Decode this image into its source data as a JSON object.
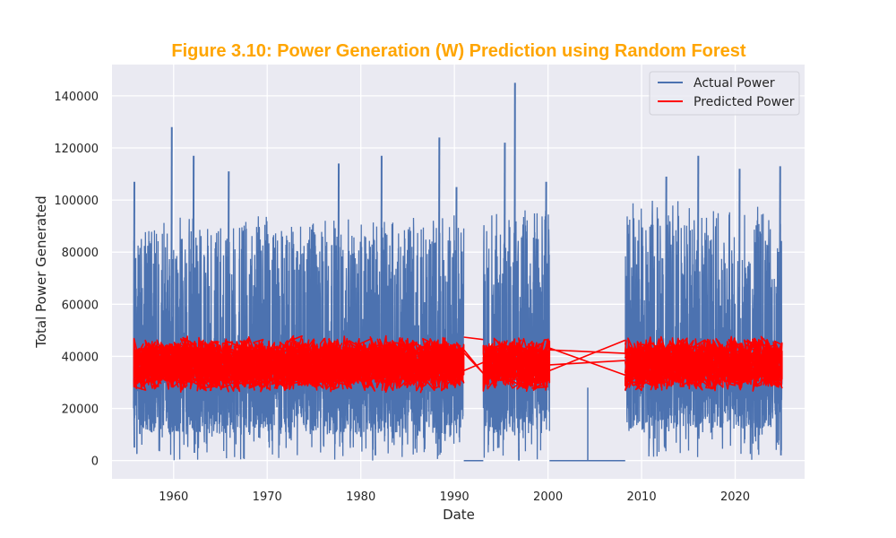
{
  "chart_data": {
    "type": "line",
    "title": "Figure 3.10: Power Generation (W) Prediction using Random Forest",
    "xlabel": "Date",
    "ylabel": "Total Power Generated",
    "xlim": [
      "1953-06",
      "2027-06"
    ],
    "ylim": [
      -7000,
      152000
    ],
    "x_ticks": [
      "1960",
      "1970",
      "1980",
      "1990",
      "2000",
      "2010",
      "2020"
    ],
    "y_ticks": [
      0,
      20000,
      40000,
      60000,
      80000,
      100000,
      120000,
      140000
    ],
    "grid": true,
    "legend_position": "top-right",
    "colors": {
      "title": "#FFA500",
      "background": "#EAEAF2",
      "grid": "#FFFFFF",
      "actual": "#4C72B0",
      "predicted": "#FF0000"
    },
    "series": [
      {
        "name": "Actual Power",
        "color": "#4C72B0",
        "segments": [
          {
            "start": "1955-10",
            "end": "1991-01",
            "baseline_min": 10000,
            "typical_max": 90000
          },
          {
            "start": "1993-02",
            "end": "2000-03",
            "baseline_min": 10000,
            "typical_max": 95000
          },
          {
            "start": "2008-04",
            "end": "2025-01",
            "baseline_min": 12000,
            "typical_max": 95000
          }
        ],
        "zero_segments": [
          [
            "1991-01",
            "1993-02"
          ],
          [
            "2000-03",
            "2008-04"
          ]
        ],
        "peaks": [
          {
            "x": "1955-10",
            "y": 107000
          },
          {
            "x": "1959-10",
            "y": 128000
          },
          {
            "x": "1962-02",
            "y": 117000
          },
          {
            "x": "1965-11",
            "y": 111000
          },
          {
            "x": "1977-08",
            "y": 114000
          },
          {
            "x": "1982-03",
            "y": 117000
          },
          {
            "x": "1988-05",
            "y": 124000
          },
          {
            "x": "1990-03",
            "y": 105000
          },
          {
            "x": "1995-05",
            "y": 122000
          },
          {
            "x": "1996-06",
            "y": 145000
          },
          {
            "x": "1999-10",
            "y": 107000
          },
          {
            "x": "2012-08",
            "y": 109000
          },
          {
            "x": "2016-01",
            "y": 117000
          },
          {
            "x": "2020-06",
            "y": 112000
          },
          {
            "x": "2024-10",
            "y": 113000
          }
        ],
        "dips": [
          {
            "x": "1955-10",
            "y": 5000
          },
          {
            "x": "1962-03",
            "y": 3000
          },
          {
            "x": "1981-07",
            "y": 2000
          },
          {
            "x": "1996-11",
            "y": 0
          },
          {
            "x": "2024-11",
            "y": 2000
          }
        ]
      },
      {
        "name": "Predicted Power",
        "color": "#FF0000",
        "segments": [
          {
            "start": "1955-10",
            "end": "1991-01",
            "min": 26000,
            "max": 48000
          },
          {
            "start": "1993-02",
            "end": "2000-03",
            "min": 26000,
            "max": 48000
          },
          {
            "start": "2008-04",
            "end": "2025-01",
            "min": 26000,
            "max": 48000
          }
        ]
      }
    ]
  }
}
